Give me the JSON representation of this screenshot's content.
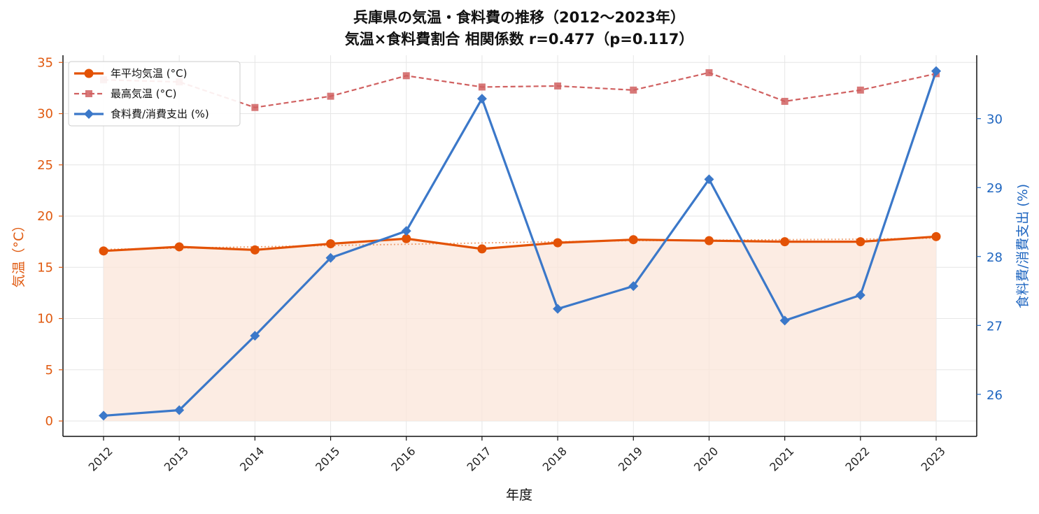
{
  "chart_data": {
    "type": "line",
    "title_line1": "兵庫県の気温・食料費の推移（2012〜2023年）",
    "title_line2": "気温×食料費割合 相関係数 r=0.477（p=0.117）",
    "xlabel": "年度",
    "ylabel_left": "気温（°C）",
    "ylabel_right": "食料費/消費支出 (%)",
    "x": [
      "2012",
      "2013",
      "2014",
      "2015",
      "2016",
      "2017",
      "2018",
      "2019",
      "2020",
      "2021",
      "2022",
      "2023"
    ],
    "ylim_left": [
      -1.5,
      35.7
    ],
    "yticks_left": [
      0,
      5,
      10,
      15,
      20,
      25,
      30,
      35
    ],
    "ylim_right": [
      25.39,
      30.92
    ],
    "yticks_right": [
      26,
      27,
      28,
      29,
      30
    ],
    "grid": true,
    "legend_position": "top-left",
    "colors": {
      "avg_temp": "#e35205",
      "max_temp": "#d06060",
      "food": "#3b78c9",
      "fill": "#fbe6d9",
      "trend": "#f0a070",
      "left_axis": "#e05a10",
      "right_axis": "#1f66c0"
    },
    "series": [
      {
        "name": "年平均気温 (°C)",
        "axis": "left",
        "style": "solid-circle",
        "values": [
          16.6,
          17.0,
          16.7,
          17.3,
          17.8,
          16.8,
          17.4,
          17.7,
          17.6,
          17.5,
          17.5,
          18.0
        ]
      },
      {
        "name": "最高気温 (°C)",
        "axis": "left",
        "style": "dashed-square",
        "values": [
          33.3,
          33.1,
          30.6,
          31.7,
          33.7,
          32.6,
          32.7,
          32.3,
          34.0,
          31.2,
          32.3,
          33.9
        ]
      },
      {
        "name": "食料費/消費支出 (%)",
        "axis": "right",
        "style": "solid-diamond",
        "values": [
          25.69,
          25.77,
          26.85,
          27.98,
          28.37,
          30.29,
          27.24,
          27.57,
          29.12,
          27.07,
          27.44,
          30.69
        ]
      }
    ],
    "trend_left": [
      16.75,
      16.88,
      17.0,
      17.13,
      17.25,
      17.38,
      17.5,
      17.6,
      17.65,
      17.7,
      17.75,
      17.85
    ]
  }
}
